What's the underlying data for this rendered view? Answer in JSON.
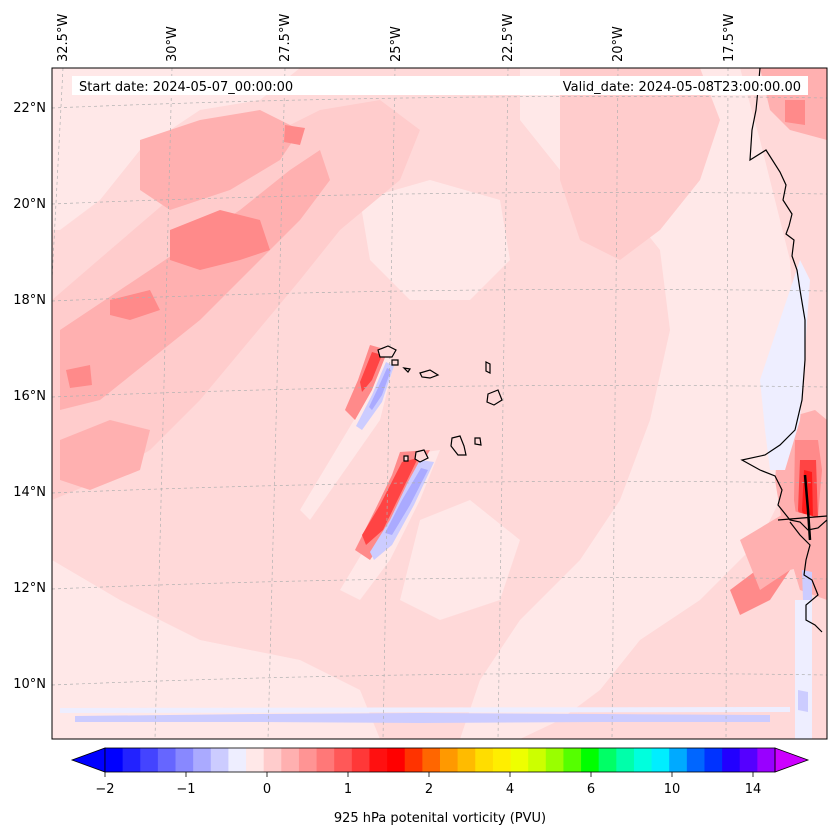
{
  "header": {
    "start_date": "Start date: 2024-05-07_00:00:00",
    "valid_date": "Valid_date: 2024-05-08T23:00:00.00"
  },
  "longitude_labels": [
    "32.5°W",
    "30°W",
    "27.5°W",
    "25°W",
    "22.5°W",
    "20°W",
    "17.5°W"
  ],
  "latitude_labels": [
    "22°N",
    "20°N",
    "18°N",
    "16°N",
    "14°N",
    "12°N",
    "10°N"
  ],
  "colorbar": {
    "label": "925 hPa potenital vorticity (PVU)",
    "tick_labels": [
      "−2",
      "−1",
      "0",
      "1",
      "2",
      "4",
      "6",
      "10",
      "14"
    ],
    "colors": [
      "#0000ff",
      "#2222ff",
      "#4444ff",
      "#6666ff",
      "#8888ff",
      "#aaaaff",
      "#ccccff",
      "#eeeeff",
      "#ffe8e8",
      "#ffcccc",
      "#ffb0b0",
      "#ff9494",
      "#ff7878",
      "#ff5858",
      "#ff3838",
      "#ff1010",
      "#ff0000",
      "#ff3300",
      "#ff6600",
      "#ff9900",
      "#ffbb00",
      "#ffdd00",
      "#ffee00",
      "#eeff00",
      "#ccff00",
      "#99ff00",
      "#55ff00",
      "#00ff00",
      "#00ff66",
      "#00ffaa",
      "#00ffdd",
      "#00eeff",
      "#00aaff",
      "#0066ff",
      "#0033ff",
      "#2200ff",
      "#5500ff",
      "#9900ff"
    ],
    "under_color": "#0000ff",
    "over_color": "#cc00ff"
  },
  "field": {
    "background_color": "#ffd9d9",
    "colors": {
      "lightest": "#ffe8e8",
      "light": "#ffcccc",
      "medium": "#ffb0b0",
      "strong": "#ff8a8a",
      "intense": "#ff4444",
      "core": "#ff1a1a",
      "neg_faint": "#eeeeff",
      "neg_light": "#ccccff",
      "neg_medium": "#aaaaff",
      "neg_strong": "#8888ff"
    }
  }
}
